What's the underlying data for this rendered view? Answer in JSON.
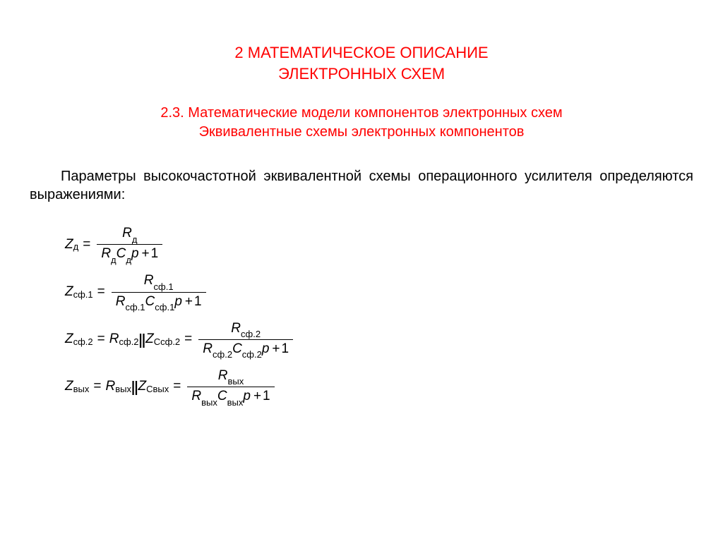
{
  "colors": {
    "heading": "#ff0000",
    "text": "#000000",
    "background": "#ffffff"
  },
  "typography": {
    "heading_main_size": 22,
    "heading_sub_size": 20,
    "body_size": 20,
    "equation_size": 19,
    "subscript_size": 13,
    "font_family": "Arial"
  },
  "heading": {
    "line1": "2 МАТЕМАТИЧЕСКОЕ  ОПИСАНИЕ",
    "line2": "ЭЛЕКТРОННЫХ  СХЕМ"
  },
  "subheading": {
    "line1": "2.3. Математические модели компонентов электронных схем",
    "line2": "Эквивалентные схемы электронных компонентов"
  },
  "paragraph": "Параметры высокочастотной эквивалентной схемы операционного усилителя определяются выражениями:",
  "equations": [
    {
      "lhs": {
        "var": "Z",
        "sub": "д"
      },
      "rhs_frac": {
        "num_var": "R",
        "num_sub": "д",
        "den_r_var": "R",
        "den_r_sub": "д",
        "den_c_var": "C",
        "den_c_sub": "д",
        "den_p": "p",
        "den_plus1": "1"
      }
    },
    {
      "lhs": {
        "var": "Z",
        "sub": "сф.1"
      },
      "rhs_frac": {
        "num_var": "R",
        "num_sub": "сф.1",
        "den_r_var": "R",
        "den_r_sub": "сф.1",
        "den_c_var": "C",
        "den_c_sub": "сф.1",
        "den_p": "p",
        "den_plus1": "1"
      }
    },
    {
      "lhs": {
        "var": "Z",
        "sub": "сф.2"
      },
      "mid_parallel": {
        "a_var": "R",
        "a_sub": "сф.2",
        "b_var": "Z",
        "b_sub": "Cсф.2"
      },
      "rhs_frac": {
        "num_var": "R",
        "num_sub": "сф.2",
        "den_r_var": "R",
        "den_r_sub": "сф.2",
        "den_c_var": "C",
        "den_c_sub": "сф.2",
        "den_p": "p",
        "den_plus1": "1"
      }
    },
    {
      "lhs": {
        "var": "Z",
        "sub": "вых"
      },
      "mid_parallel": {
        "a_var": "R",
        "a_sub": "вых",
        "b_var": "Z",
        "b_sub": "Cвых"
      },
      "rhs_frac": {
        "num_var": "R",
        "num_sub": "вых",
        "den_r_var": "R",
        "den_r_sub": "вых",
        "den_c_var": "C",
        "den_c_sub": "вых",
        "den_p": "p",
        "den_plus1": "1"
      }
    }
  ]
}
